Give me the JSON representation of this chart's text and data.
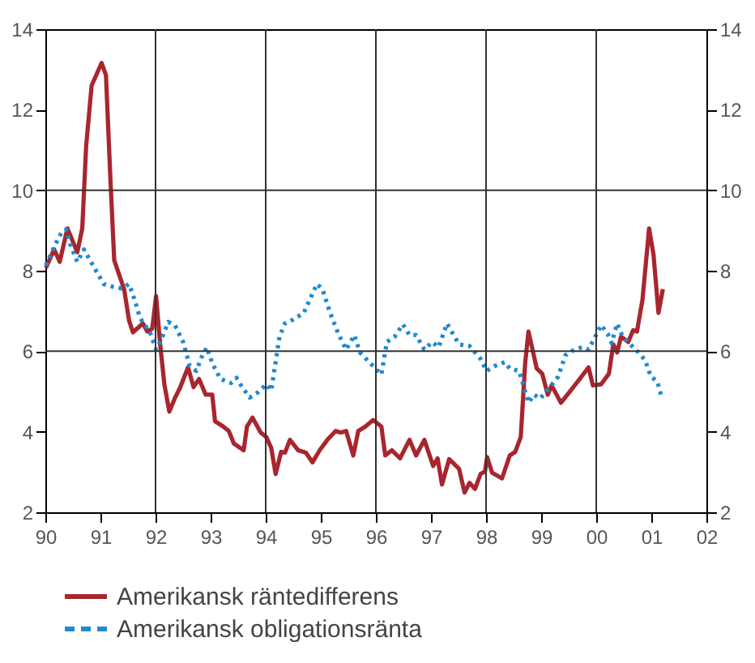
{
  "chart_data": {
    "type": "line",
    "xlim": [
      1990,
      2002
    ],
    "xticks": [
      {
        "value": 1990,
        "label": "90"
      },
      {
        "value": 1991,
        "label": "91"
      },
      {
        "value": 1992,
        "label": "92"
      },
      {
        "value": 1993,
        "label": "93"
      },
      {
        "value": 1994,
        "label": "94"
      },
      {
        "value": 1995,
        "label": "95"
      },
      {
        "value": 1996,
        "label": "96"
      },
      {
        "value": 1997,
        "label": "97"
      },
      {
        "value": 1998,
        "label": "98"
      },
      {
        "value": 1999,
        "label": "99"
      },
      {
        "value": 2000,
        "label": "00"
      },
      {
        "value": 2001,
        "label": "01"
      },
      {
        "value": 2002,
        "label": "02"
      }
    ],
    "ylim": [
      2,
      14
    ],
    "yticks": [
      2,
      4,
      6,
      8,
      10,
      12,
      14
    ],
    "y2lim": [
      2,
      14
    ],
    "y2ticks": [
      2,
      4,
      6,
      8,
      10,
      12,
      14
    ],
    "legend": "bottom",
    "ref_lines": [
      {
        "axis": "y",
        "value": 6
      },
      {
        "axis": "y",
        "value": 10
      },
      {
        "axis": "x",
        "value": 1992
      },
      {
        "axis": "x",
        "value": 1994
      },
      {
        "axis": "x",
        "value": 1996
      },
      {
        "axis": "x",
        "value": 1998
      },
      {
        "axis": "x",
        "value": 2000
      }
    ],
    "series": [
      {
        "name": "Amerikansk räntedifferens",
        "color": "#a8262e",
        "line_style": "solid",
        "x": [
          1990.01,
          1990.16,
          1990.26,
          1990.4,
          1990.58,
          1990.67,
          1990.74,
          1990.84,
          1991.02,
          1991.1,
          1991.18,
          1991.25,
          1991.43,
          1991.52,
          1991.59,
          1991.77,
          1991.85,
          1991.94,
          1992.01,
          1992.08,
          1992.16,
          1992.25,
          1992.35,
          1992.45,
          1992.59,
          1992.69,
          1992.79,
          1992.91,
          1993.03,
          1993.08,
          1993.23,
          1993.33,
          1993.42,
          1993.6,
          1993.66,
          1993.76,
          1993.91,
          1994.01,
          1994.1,
          1994.18,
          1994.28,
          1994.35,
          1994.44,
          1994.59,
          1994.73,
          1994.85,
          1994.98,
          1995.12,
          1995.27,
          1995.36,
          1995.46,
          1995.59,
          1995.68,
          1995.81,
          1995.95,
          1996.1,
          1996.17,
          1996.29,
          1996.44,
          1996.61,
          1996.73,
          1996.88,
          1997.04,
          1997.12,
          1997.2,
          1997.33,
          1997.51,
          1997.61,
          1997.7,
          1997.8,
          1997.9,
          1997.98,
          1998.02,
          1998.11,
          1998.29,
          1998.43,
          1998.53,
          1998.63,
          1998.71,
          1998.77,
          1998.92,
          1999.02,
          1999.12,
          1999.19,
          1999.36,
          1999.55,
          1999.7,
          1999.86,
          1999.94,
          2000.09,
          2000.23,
          2000.31,
          2000.38,
          2000.45,
          2000.58,
          2000.67,
          2000.74,
          2000.84,
          2000.96,
          2001.04,
          2001.13,
          2001.21
        ],
        "values": [
          8.07,
          8.53,
          8.22,
          9.05,
          8.46,
          9.05,
          11.09,
          12.6,
          13.16,
          12.86,
          10.3,
          8.26,
          7.54,
          6.76,
          6.47,
          6.69,
          6.49,
          6.56,
          7.37,
          6.23,
          5.18,
          4.5,
          4.83,
          5.11,
          5.6,
          5.11,
          5.31,
          4.92,
          4.92,
          4.26,
          4.13,
          4.02,
          3.71,
          3.54,
          4.13,
          4.35,
          3.98,
          3.87,
          3.6,
          2.95,
          3.5,
          3.48,
          3.8,
          3.54,
          3.48,
          3.24,
          3.54,
          3.8,
          4.02,
          3.98,
          4.02,
          3.41,
          4.02,
          4.13,
          4.29,
          4.13,
          3.41,
          3.54,
          3.34,
          3.8,
          3.41,
          3.8,
          3.15,
          3.34,
          2.69,
          3.32,
          3.08,
          2.49,
          2.73,
          2.58,
          2.95,
          3.01,
          3.37,
          2.98,
          2.84,
          3.41,
          3.5,
          3.87,
          5.7,
          6.49,
          5.57,
          5.44,
          4.92,
          5.15,
          4.72,
          5.05,
          5.31,
          5.6,
          5.15,
          5.18,
          5.44,
          6.17,
          5.97,
          6.36,
          6.23,
          6.52,
          6.49,
          7.28,
          9.05,
          8.4,
          6.95,
          7.54
        ]
      },
      {
        "name": "Amerikansk obligationsränta",
        "color": "#1f8ad0",
        "line_style": "dotted",
        "x": [
          1990.01,
          1990.16,
          1990.31,
          1990.38,
          1990.45,
          1990.58,
          1990.7,
          1990.89,
          1991.06,
          1991.23,
          1991.38,
          1991.52,
          1991.62,
          1991.72,
          1991.81,
          1991.91,
          1992.01,
          1992.11,
          1992.23,
          1992.35,
          1992.5,
          1992.62,
          1992.74,
          1992.84,
          1992.93,
          1993.03,
          1993.18,
          1993.37,
          1993.47,
          1993.57,
          1993.71,
          1993.86,
          1994.01,
          1994.1,
          1994.25,
          1994.35,
          1994.49,
          1994.69,
          1994.93,
          1995.03,
          1995.17,
          1995.32,
          1995.46,
          1995.61,
          1995.71,
          1995.9,
          1996.1,
          1996.2,
          1996.34,
          1996.49,
          1996.61,
          1996.73,
          1996.88,
          1997.02,
          1997.14,
          1997.29,
          1997.51,
          1997.7,
          1997.9,
          1998.01,
          1998.17,
          1998.34,
          1998.43,
          1998.6,
          1998.77,
          1998.87,
          1998.98,
          1999.16,
          1999.31,
          1999.44,
          1999.6,
          1999.75,
          1999.86,
          1999.96,
          2000.09,
          2000.21,
          2000.28,
          2000.38,
          2000.48,
          2000.62,
          2000.77,
          2000.89,
          2000.99,
          2001.11,
          2001.19
        ],
        "values": [
          8.13,
          8.6,
          8.99,
          9.02,
          8.66,
          8.22,
          8.53,
          8.07,
          7.67,
          7.6,
          7.56,
          7.67,
          7.28,
          6.82,
          6.65,
          6.43,
          6.04,
          6.3,
          6.73,
          6.65,
          6.23,
          5.64,
          5.51,
          5.86,
          6.1,
          5.7,
          5.31,
          5.21,
          5.34,
          5.11,
          4.85,
          4.98,
          5.18,
          5.02,
          6.36,
          6.69,
          6.78,
          6.95,
          7.67,
          7.54,
          6.95,
          6.43,
          6.04,
          6.4,
          5.97,
          5.7,
          5.42,
          6.23,
          6.36,
          6.67,
          6.4,
          6.4,
          6.04,
          6.23,
          6.1,
          6.69,
          6.17,
          6.13,
          5.81,
          5.51,
          5.64,
          5.73,
          5.57,
          5.51,
          4.72,
          4.92,
          4.82,
          5.11,
          5.37,
          5.9,
          6.04,
          6.1,
          6.04,
          6.3,
          6.65,
          6.43,
          6.2,
          6.69,
          6.36,
          6.17,
          5.97,
          5.77,
          5.38,
          5.24,
          4.85
        ]
      }
    ]
  }
}
